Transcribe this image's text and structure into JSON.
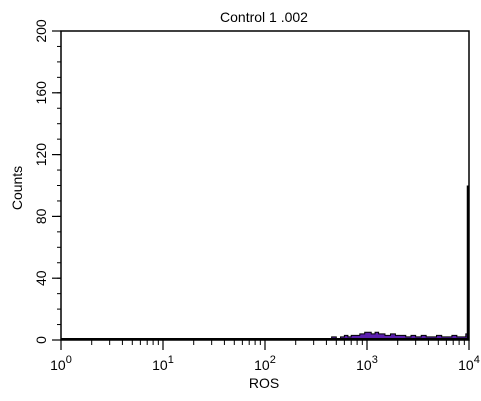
{
  "chart_data": {
    "type": "histogram",
    "title": "Control 1 .002",
    "xlabel": "ROS",
    "ylabel": "Counts",
    "x_scale": "log",
    "xlim": [
      1,
      10000
    ],
    "ylim": [
      0,
      200
    ],
    "x_ticks": [
      {
        "base": "10",
        "exp": "0"
      },
      {
        "base": "10",
        "exp": "1"
      },
      {
        "base": "10",
        "exp": "2"
      },
      {
        "base": "10",
        "exp": "3"
      },
      {
        "base": "10",
        "exp": "4"
      }
    ],
    "y_ticks": [
      "0",
      "40",
      "80",
      "120",
      "160",
      "200"
    ],
    "grid": false,
    "fill_color": "#5b1fae",
    "line_color": "#000000",
    "bins_x": [
      250,
      300,
      350,
      400,
      450,
      500,
      550,
      600,
      650,
      700,
      750,
      800,
      850,
      900,
      950,
      1000,
      1100,
      1200,
      1300,
      1400,
      1500,
      1700,
      1900,
      2100,
      2400,
      2700,
      3000,
      3400,
      3800,
      4300,
      4800,
      5400,
      6000,
      6800,
      7600,
      8500,
      9300,
      9700,
      9900,
      10000
    ],
    "counts": [
      0,
      0,
      1,
      1,
      2,
      1,
      2,
      3,
      2,
      3,
      3,
      3,
      4,
      4,
      5,
      5,
      4,
      5,
      4,
      4,
      3,
      4,
      3,
      3,
      2,
      3,
      2,
      3,
      2,
      2,
      3,
      2,
      2,
      3,
      2,
      2,
      4,
      5,
      5,
      100
    ]
  }
}
